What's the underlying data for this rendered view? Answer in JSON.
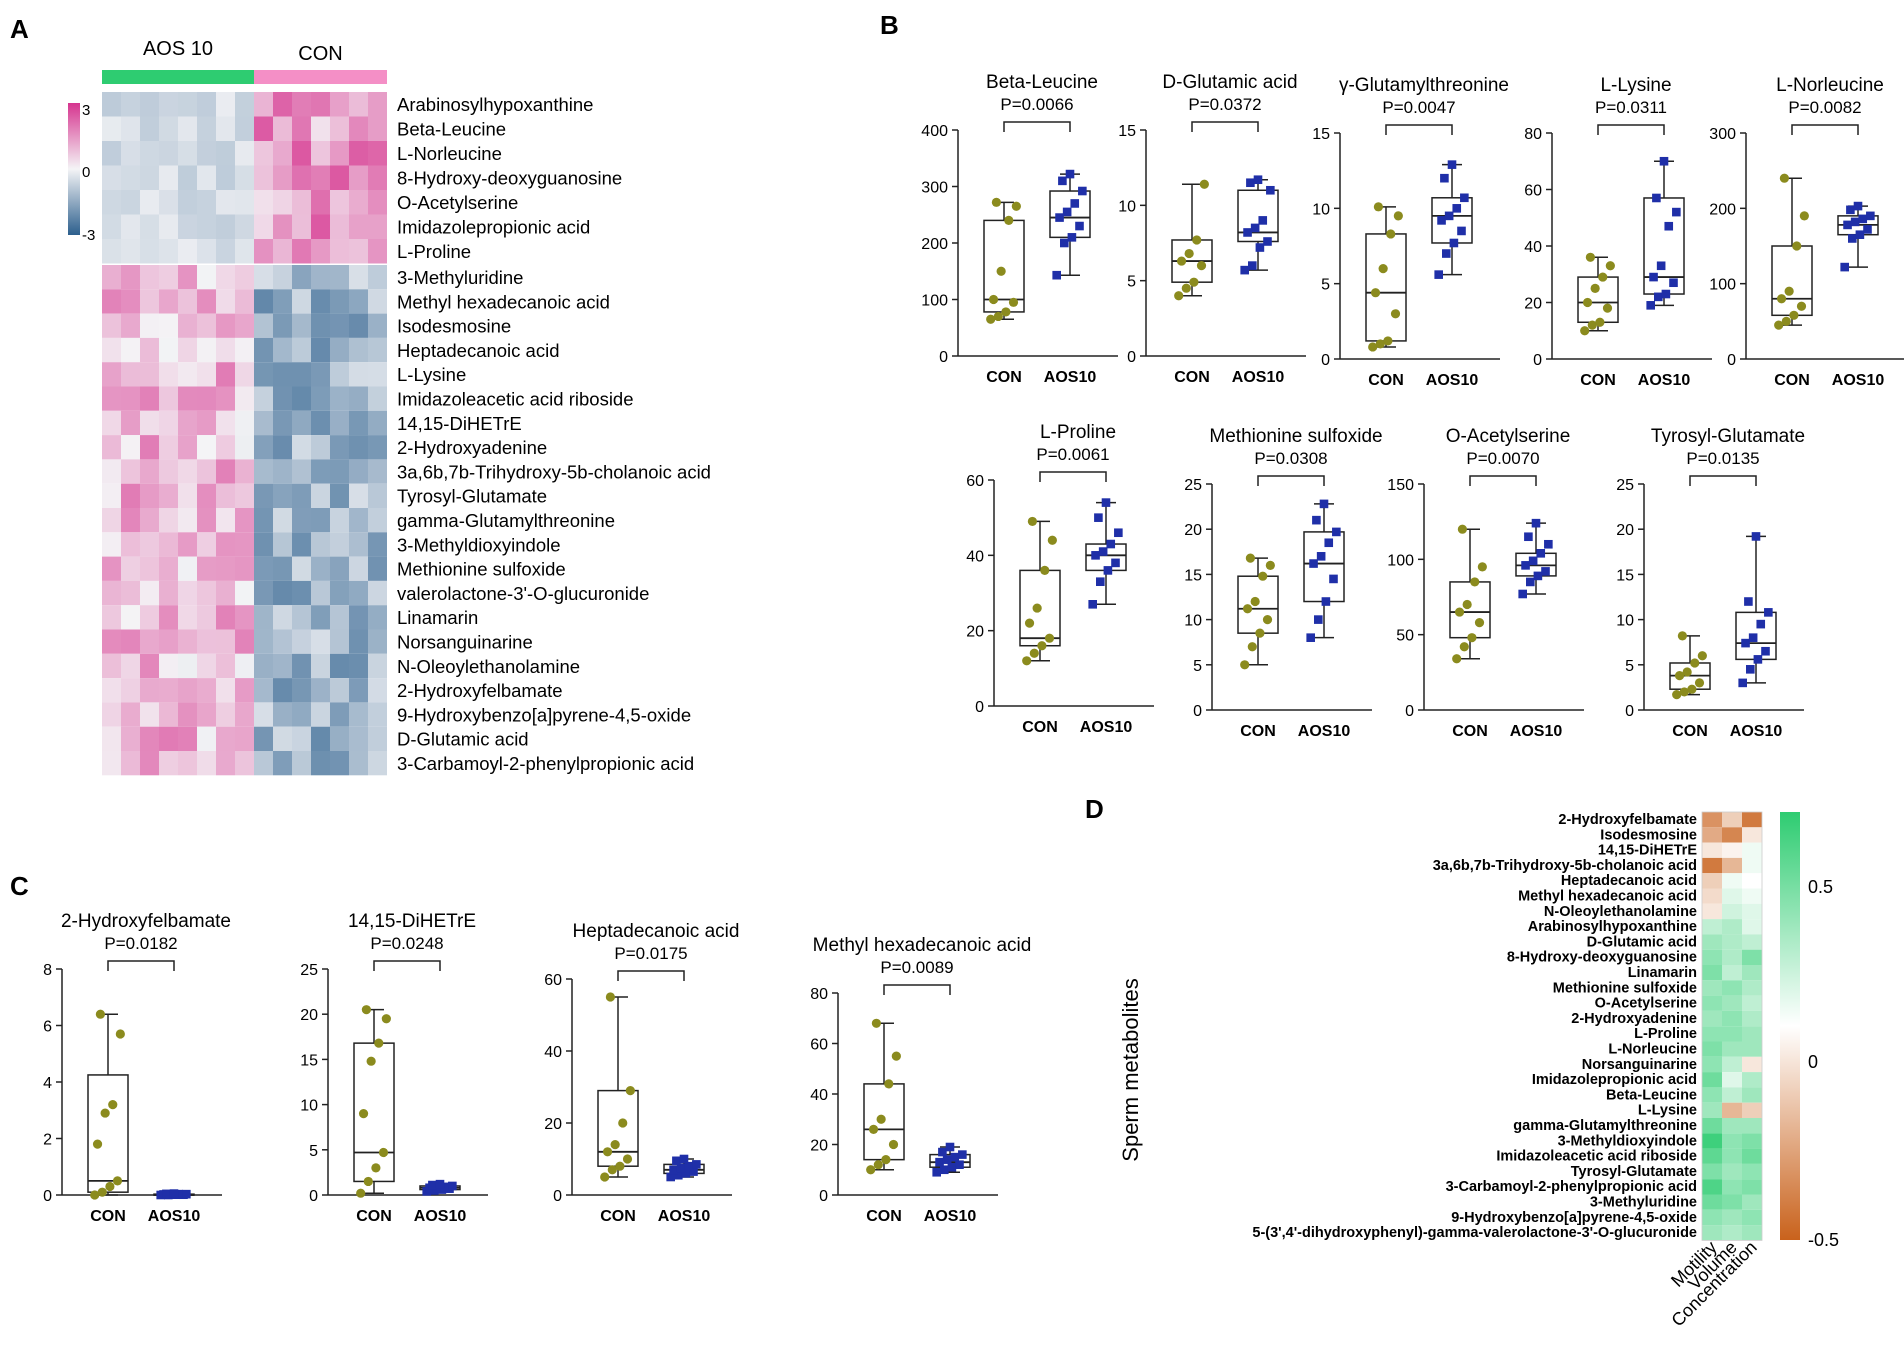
{
  "colors": {
    "aos_bar": "#2ecc71",
    "con_bar": "#f48fc6",
    "con_point": "#8b8b1e",
    "aos_point": "#1f2fa8",
    "heat_high": "#d6358f",
    "heat_mid": "#f4f4f6",
    "heat_low": "#2c5f8d",
    "corr_pos": "#2ecc71",
    "corr_neg": "#c9621c"
  },
  "panel_labels": {
    "a": "A",
    "b": "B",
    "c": "C",
    "d": "D"
  },
  "heatmap": {
    "group_labels": [
      "AOS 10",
      "CON"
    ],
    "scale_ticks": [
      "3",
      "0",
      "-3"
    ],
    "block1_rows": [
      "Arabinosylhypoxanthine",
      "Beta-Leucine",
      "L-Norleucine",
      "8-Hydroxy-deoxyguanosine",
      "O-Acetylserine",
      "Imidazolepropionic acid",
      "L-Proline"
    ],
    "block2_rows": [
      "3-Methyluridine",
      "Methyl hexadecanoic acid",
      "Isodesmosine",
      "Heptadecanoic acid",
      "L-Lysine",
      "Imidazoleacetic acid riboside",
      "14,15-DiHETrE",
      "2-Hydroxyadenine",
      "3a,6b,7b-Trihydroxy-5b-cholanoic acid",
      "Tyrosyl-Glutamate",
      "gamma-Glutamylthreonine",
      "3-Methyldioxyindole",
      "Methionine sulfoxide",
      "valerolactone-3'-O-glucuronide",
      "Linamarin",
      "Norsanguinarine",
      "N-Oleoylethanolamine",
      "2-Hydroxyfelbamate",
      "9-Hydroxybenzo[a]pyrene-4,5-oxide",
      "D-Glutamic acid",
      "3-Carbamoyl-2-phenylpropionic acid"
    ]
  },
  "chart_data": [
    {
      "panel": "B",
      "type": "box",
      "title": "Beta-Leucine",
      "pvalue": "P=0.0066",
      "ylim": [
        0,
        400
      ],
      "yticks": [
        "0",
        "100",
        "200",
        "300",
        "400"
      ],
      "categories": [
        "CON",
        "AOS10"
      ],
      "series": [
        {
          "name": "CON",
          "min": 65,
          "q1": 78,
          "median": 100,
          "q3": 240,
          "max": 272,
          "points": [
            65,
            70,
            78,
            95,
            100,
            150,
            240,
            265,
            272
          ]
        },
        {
          "name": "AOS10",
          "min": 143,
          "q1": 210,
          "median": 245,
          "q3": 292,
          "max": 322,
          "points": [
            143,
            200,
            210,
            230,
            245,
            255,
            270,
            292,
            310,
            322
          ]
        }
      ]
    },
    {
      "panel": "B",
      "type": "box",
      "title": "D-Glutamic acid",
      "pvalue": "P=0.0372",
      "ylim": [
        0,
        15
      ],
      "yticks": [
        "0",
        "5",
        "10",
        "15"
      ],
      "categories": [
        "CON",
        "AOS10"
      ],
      "series": [
        {
          "name": "CON",
          "min": 4,
          "q1": 4.9,
          "median": 6.3,
          "q3": 7.7,
          "max": 11.4,
          "points": [
            4,
            4.5,
            4.9,
            6,
            6.3,
            6.8,
            7.7,
            11.4
          ]
        },
        {
          "name": "AOS10",
          "min": 5.7,
          "q1": 7.6,
          "median": 8.2,
          "q3": 11,
          "max": 11.7,
          "points": [
            5.7,
            6,
            7.2,
            7.6,
            8.2,
            8.5,
            9,
            11,
            11.5,
            11.7
          ]
        }
      ]
    },
    {
      "panel": "B",
      "type": "box",
      "title": "γ-Glutamylthreonine",
      "pvalue": "P=0.0047",
      "ylim": [
        0,
        15
      ],
      "yticks": [
        "0",
        "5",
        "10",
        "15"
      ],
      "categories": [
        "CON",
        "AOS10"
      ],
      "series": [
        {
          "name": "CON",
          "min": 0.8,
          "q1": 1.2,
          "median": 4.4,
          "q3": 8.3,
          "max": 10.1,
          "points": [
            0.8,
            1,
            1.2,
            3,
            4.4,
            6,
            8.3,
            9.5,
            10.1
          ]
        },
        {
          "name": "AOS10",
          "min": 5.6,
          "q1": 7.7,
          "median": 9.5,
          "q3": 10.7,
          "max": 12.9,
          "points": [
            5.6,
            7,
            7.7,
            8.5,
            9.2,
            9.5,
            10,
            10.7,
            12,
            12.9
          ]
        }
      ]
    },
    {
      "panel": "B",
      "type": "box",
      "title": "L-Lysine",
      "pvalue": "P=0.0311",
      "ylim": [
        0,
        80
      ],
      "yticks": [
        "0",
        "20",
        "40",
        "60",
        "80"
      ],
      "categories": [
        "CON",
        "AOS10"
      ],
      "series": [
        {
          "name": "CON",
          "min": 10,
          "q1": 13,
          "median": 20,
          "q3": 29,
          "max": 36,
          "points": [
            10,
            12,
            13,
            18,
            20,
            25,
            29,
            33,
            36
          ]
        },
        {
          "name": "AOS10",
          "min": 19,
          "q1": 23,
          "median": 29,
          "q3": 57,
          "max": 70,
          "points": [
            19,
            22,
            23,
            27,
            29,
            33,
            47,
            52,
            57,
            70
          ]
        }
      ]
    },
    {
      "panel": "B",
      "type": "box",
      "title": "L-Norleucine",
      "pvalue": "P=0.0082",
      "ylim": [
        0,
        300
      ],
      "yticks": [
        "0",
        "100",
        "200",
        "300"
      ],
      "categories": [
        "CON",
        "AOS10"
      ],
      "series": [
        {
          "name": "CON",
          "min": 45,
          "q1": 58,
          "median": 80,
          "q3": 150,
          "max": 240,
          "points": [
            45,
            50,
            58,
            70,
            80,
            90,
            150,
            190,
            240
          ]
        },
        {
          "name": "AOS10",
          "min": 122,
          "q1": 165,
          "median": 178,
          "q3": 190,
          "max": 203,
          "points": [
            122,
            160,
            165,
            172,
            178,
            182,
            186,
            190,
            198,
            203
          ]
        }
      ]
    },
    {
      "panel": "B",
      "type": "box",
      "title": "L-Proline",
      "pvalue": "P=0.0061",
      "ylim": [
        0,
        60
      ],
      "yticks": [
        "0",
        "20",
        "40",
        "60"
      ],
      "categories": [
        "CON",
        "AOS10"
      ],
      "series": [
        {
          "name": "CON",
          "min": 12,
          "q1": 16,
          "median": 18,
          "q3": 36,
          "max": 49,
          "points": [
            12,
            14,
            16,
            18,
            22,
            26,
            36,
            44,
            49
          ]
        },
        {
          "name": "AOS10",
          "min": 27,
          "q1": 36,
          "median": 40,
          "q3": 43,
          "max": 54,
          "points": [
            27,
            33,
            36,
            38,
            40,
            41,
            43,
            46,
            50,
            54
          ]
        }
      ]
    },
    {
      "panel": "B",
      "type": "box",
      "title": "Methionine sulfoxide",
      "pvalue": "P=0.0308",
      "ylim": [
        0,
        25
      ],
      "yticks": [
        "0",
        "5",
        "10",
        "15",
        "20",
        "25"
      ],
      "categories": [
        "CON",
        "AOS10"
      ],
      "series": [
        {
          "name": "CON",
          "min": 5,
          "q1": 8.5,
          "median": 11.2,
          "q3": 14.8,
          "max": 16.8,
          "points": [
            5,
            7,
            8.5,
            10,
            11.2,
            12,
            14.8,
            16,
            16.8
          ]
        },
        {
          "name": "AOS10",
          "min": 8,
          "q1": 12,
          "median": 16.2,
          "q3": 19.7,
          "max": 22.8,
          "points": [
            8,
            10,
            12,
            14.5,
            16.2,
            17,
            18.5,
            19.7,
            21,
            22.8
          ]
        }
      ]
    },
    {
      "panel": "B",
      "type": "box",
      "title": "O-Acetylserine",
      "pvalue": "P=0.0070",
      "ylim": [
        0,
        150
      ],
      "yticks": [
        "0",
        "50",
        "100",
        "150"
      ],
      "categories": [
        "CON",
        "AOS10"
      ],
      "series": [
        {
          "name": "CON",
          "min": 34,
          "q1": 48,
          "median": 65,
          "q3": 85,
          "max": 120,
          "points": [
            34,
            42,
            48,
            58,
            65,
            70,
            85,
            95,
            120
          ]
        },
        {
          "name": "AOS10",
          "min": 77,
          "q1": 89,
          "median": 96,
          "q3": 104,
          "max": 124,
          "points": [
            77,
            85,
            89,
            92,
            96,
            99,
            104,
            110,
            115,
            124
          ]
        }
      ]
    },
    {
      "panel": "B",
      "type": "box",
      "title": "Tyrosyl-Glutamate",
      "pvalue": "P=0.0135",
      "ylim": [
        0,
        25
      ],
      "yticks": [
        "0",
        "5",
        "10",
        "15",
        "20",
        "25"
      ],
      "categories": [
        "CON",
        "AOS10"
      ],
      "series": [
        {
          "name": "CON",
          "min": 1.7,
          "q1": 2.3,
          "median": 3.8,
          "q3": 5.2,
          "max": 8.2,
          "points": [
            1.7,
            2,
            2.3,
            3,
            3.8,
            4.2,
            5.2,
            6,
            8.2
          ]
        },
        {
          "name": "AOS10",
          "min": 3,
          "q1": 5.6,
          "median": 7.4,
          "q3": 10.8,
          "max": 19.2,
          "points": [
            3,
            4.5,
            5.6,
            6.5,
            7.4,
            8,
            9.5,
            10.8,
            12,
            19.2
          ]
        }
      ]
    },
    {
      "panel": "C",
      "type": "box",
      "title": "2-Hydroxyfelbamate",
      "pvalue": "P=0.0182",
      "ylim": [
        0,
        8
      ],
      "yticks": [
        "0",
        "2",
        "4",
        "6",
        "8"
      ],
      "categories": [
        "CON",
        "AOS10"
      ],
      "series": [
        {
          "name": "CON",
          "min": 0,
          "q1": 0.1,
          "median": 0.5,
          "q3": 4.25,
          "max": 6.4,
          "points": [
            0,
            0.1,
            0.3,
            0.5,
            1.8,
            2.9,
            3.2,
            5.7,
            6.4
          ]
        },
        {
          "name": "AOS10",
          "min": 0,
          "q1": 0,
          "median": 0,
          "q3": 0.03,
          "max": 0.05,
          "points": [
            0,
            0,
            0.01,
            0.01,
            0.02,
            0.02,
            0.03,
            0.03,
            0.04,
            0.05
          ]
        }
      ]
    },
    {
      "panel": "C",
      "type": "box",
      "title": "14,15-DiHETrE",
      "pvalue": "P=0.0248",
      "ylim": [
        0,
        25
      ],
      "yticks": [
        "0",
        "5",
        "10",
        "15",
        "20",
        "25"
      ],
      "categories": [
        "CON",
        "AOS10"
      ],
      "series": [
        {
          "name": "CON",
          "min": 0.2,
          "q1": 1.5,
          "median": 4.7,
          "q3": 16.8,
          "max": 20.5,
          "points": [
            0.2,
            1.5,
            3,
            4.7,
            9,
            14.8,
            16.8,
            19.5,
            20.5
          ]
        },
        {
          "name": "AOS10",
          "min": 0.4,
          "q1": 0.6,
          "median": 0.8,
          "q3": 1,
          "max": 1.2,
          "points": [
            0.4,
            0.5,
            0.6,
            0.7,
            0.8,
            0.8,
            0.9,
            1,
            1.1,
            1.2
          ]
        }
      ]
    },
    {
      "panel": "C",
      "type": "box",
      "title": "Heptadecanoic acid",
      "pvalue": "P=0.0175",
      "ylim": [
        0,
        60
      ],
      "yticks": [
        "0",
        "20",
        "40",
        "60"
      ],
      "categories": [
        "CON",
        "AOS10"
      ],
      "series": [
        {
          "name": "CON",
          "min": 5,
          "q1": 8,
          "median": 12,
          "q3": 29,
          "max": 55,
          "points": [
            5,
            7,
            8,
            10,
            12,
            14,
            20,
            29,
            55
          ]
        },
        {
          "name": "AOS10",
          "min": 5,
          "q1": 6,
          "median": 7,
          "q3": 8.5,
          "max": 10,
          "points": [
            5,
            5.5,
            6,
            6.5,
            7,
            7.5,
            8,
            8.5,
            9.5,
            10
          ]
        }
      ]
    },
    {
      "panel": "C",
      "type": "box",
      "title": "Methyl hexadecanoic acid",
      "pvalue": "P=0.0089",
      "ylim": [
        0,
        80
      ],
      "yticks": [
        "0",
        "20",
        "40",
        "60",
        "80"
      ],
      "categories": [
        "CON",
        "AOS10"
      ],
      "series": [
        {
          "name": "CON",
          "min": 10,
          "q1": 14,
          "median": 26,
          "q3": 44,
          "max": 68,
          "points": [
            10,
            12,
            14,
            20,
            26,
            30,
            44,
            55,
            68
          ]
        },
        {
          "name": "AOS10",
          "min": 9,
          "q1": 11,
          "median": 13,
          "q3": 16,
          "max": 19,
          "points": [
            9,
            10,
            11,
            12,
            13,
            14,
            15,
            16,
            17,
            19
          ]
        }
      ]
    },
    {
      "panel": "D",
      "type": "heatmap",
      "ylabel": "Sperm metabolites",
      "x": [
        "Motility",
        "Volume",
        "Concentration"
      ],
      "scale_ticks": [
        "0.5",
        "0",
        "-0.5"
      ],
      "rows": [
        "2-Hydroxyfelbamate",
        "Isodesmosine",
        "14,15-DiHETrE",
        "3a,6b,7b-Trihydroxy-5b-cholanoic acid",
        "Heptadecanoic acid",
        "Methyl hexadecanoic acid",
        "N-Oleoylethanolamine",
        "Arabinosylhypoxanthine",
        "D-Glutamic acid",
        "8-Hydroxy-deoxyguanosine",
        "Linamarin",
        "Methionine sulfoxide",
        "O-Acetylserine",
        "2-Hydroxyadenine",
        "L-Proline",
        "L-Norleucine",
        "Norsanguinarine",
        "Imidazolepropionic acid",
        "Beta-Leucine",
        "L-Lysine",
        "gamma-Glutamylthreonine",
        "3-Methyldioxyindole",
        "Imidazoleacetic acid riboside",
        "Tyrosyl-Glutamate",
        "3-Carbamoyl-2-phenylpropionic acid",
        "3-Methyluridine",
        "9-Hydroxybenzo[a]pyrene-4,5-oxide",
        "5-(3',4'-dihydroxyphenyl)-gamma-valerolactone-3'-O-glucuronide"
      ],
      "values": [
        [
          -0.45,
          -0.2,
          -0.55
        ],
        [
          -0.35,
          -0.5,
          -0.1
        ],
        [
          -0.1,
          -0.05,
          0.05
        ],
        [
          -0.55,
          -0.3,
          0.05
        ],
        [
          -0.2,
          0.05,
          0.0
        ],
        [
          -0.15,
          0.1,
          0.05
        ],
        [
          -0.1,
          0.15,
          0.1
        ],
        [
          0.2,
          0.25,
          0.1
        ],
        [
          0.3,
          0.25,
          0.2
        ],
        [
          0.35,
          0.25,
          0.4
        ],
        [
          0.4,
          0.2,
          0.3
        ],
        [
          0.3,
          0.35,
          0.25
        ],
        [
          0.35,
          0.3,
          0.2
        ],
        [
          0.3,
          0.35,
          0.25
        ],
        [
          0.35,
          0.35,
          0.3
        ],
        [
          0.4,
          0.3,
          0.3
        ],
        [
          0.35,
          0.2,
          -0.1
        ],
        [
          0.45,
          0.1,
          0.25
        ],
        [
          0.35,
          0.2,
          0.3
        ],
        [
          0.3,
          -0.3,
          -0.2
        ],
        [
          0.45,
          0.3,
          0.3
        ],
        [
          0.6,
          0.35,
          0.4
        ],
        [
          0.5,
          0.35,
          0.45
        ],
        [
          0.4,
          0.3,
          0.35
        ],
        [
          0.55,
          0.35,
          0.4
        ],
        [
          0.45,
          0.4,
          0.3
        ],
        [
          0.35,
          0.3,
          0.35
        ],
        [
          0.3,
          0.25,
          0.3
        ]
      ]
    }
  ]
}
